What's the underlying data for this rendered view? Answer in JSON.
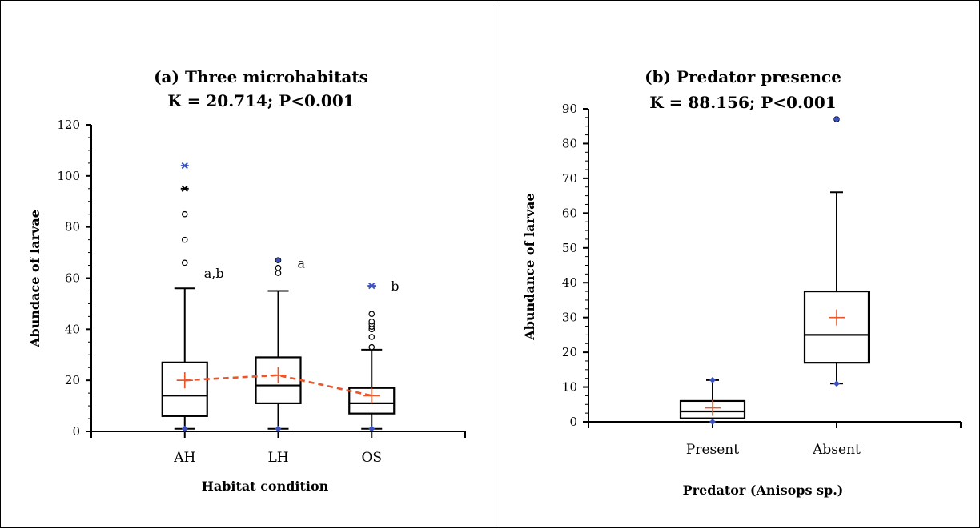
{
  "chart_data": [
    {
      "type": "box",
      "title": "(a) Three microhabitats",
      "subtitle": "K = 20.714; P<0.001",
      "xlabel": "Habitat condition",
      "ylabel": "Abundace of larvae",
      "ylim": [
        0,
        120
      ],
      "yticks": [
        0,
        20,
        40,
        60,
        80,
        100,
        120
      ],
      "categories": [
        "AH",
        "LH",
        "OS"
      ],
      "groups": [
        {
          "category": "AH",
          "min": 1,
          "q1": 6,
          "median": 14,
          "q3": 27,
          "max": 56,
          "mean": 20,
          "outliers": [
            66,
            75,
            85
          ],
          "extremes": [
            95,
            104
          ],
          "group_letter": "a,b"
        },
        {
          "category": "LH",
          "min": 1,
          "q1": 11,
          "median": 18,
          "q3": 29,
          "max": 55,
          "mean": 22,
          "outliers": [
            62,
            64,
            67
          ],
          "extremes": [],
          "group_letter": "a"
        },
        {
          "category": "OS",
          "min": 1,
          "q1": 7,
          "median": 11,
          "q3": 17,
          "max": 32,
          "mean": 14,
          "outliers": [
            33,
            37,
            40,
            41,
            42,
            43,
            46
          ],
          "extremes": [
            57
          ],
          "group_letter": "b"
        }
      ],
      "mean_line": true,
      "colors": {
        "mean_marker": "#e8562a",
        "mean_line": "#e8562a",
        "min_max_marker": "#3a52c4",
        "box": "#000000"
      }
    },
    {
      "type": "box",
      "title": "(b) Predator presence",
      "subtitle": "K = 88.156; P<0.001",
      "xlabel": "Predator (Anisops sp.)",
      "ylabel": "Abundance of larvae",
      "ylim": [
        0,
        90
      ],
      "yticks": [
        0,
        10,
        20,
        30,
        40,
        50,
        60,
        70,
        80,
        90
      ],
      "categories": [
        "Present",
        "Absent"
      ],
      "groups": [
        {
          "category": "Present",
          "min": 0,
          "q1": 1,
          "median": 3,
          "q3": 6,
          "max": 12,
          "mean": 4,
          "outliers": [],
          "extremes": []
        },
        {
          "category": "Absent",
          "min": 11,
          "q1": 17,
          "median": 25,
          "q3": 37.5,
          "max": 66,
          "mean": 30,
          "outliers": [
            87
          ],
          "extremes": []
        }
      ],
      "mean_line": false,
      "colors": {
        "mean_marker": "#e8562a",
        "min_max_marker": "#3a52c4",
        "box": "#000000"
      }
    }
  ]
}
